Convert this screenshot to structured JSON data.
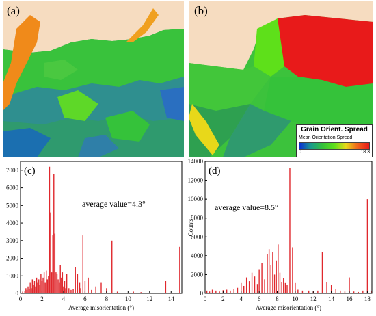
{
  "maps": {
    "a": {
      "letter": "(a)"
    },
    "b": {
      "letter": "(b)",
      "legend": {
        "title": "Grain Orient. Spread",
        "subtitle": "Mean Orientation Spread",
        "min": "0",
        "max": "18.3",
        "colors": [
          "#0a2dd6",
          "#1a9c8c",
          "#35c23a",
          "#5ee01a",
          "#e8d81a",
          "#f0641a",
          "#e81a1a"
        ]
      }
    }
  },
  "chart_data": [
    {
      "id": "c",
      "type": "bar",
      "panel_label": "(c)",
      "annotation": "average value=4.3°",
      "xlabel": "Average misorientation (°)",
      "ylabel": "",
      "xlim": [
        0,
        15
      ],
      "ylim": [
        0,
        7500
      ],
      "xticks": [
        0,
        2,
        4,
        6,
        8,
        10,
        12,
        14
      ],
      "yticks": [
        0,
        1000,
        2000,
        3000,
        4000,
        5000,
        6000,
        7000
      ],
      "color": "#e0282d",
      "x": [
        0.2,
        0.4,
        0.5,
        0.6,
        0.7,
        0.8,
        0.9,
        1.0,
        1.1,
        1.2,
        1.3,
        1.4,
        1.5,
        1.6,
        1.7,
        1.8,
        1.9,
        2.0,
        2.1,
        2.2,
        2.3,
        2.4,
        2.5,
        2.6,
        2.7,
        2.8,
        2.9,
        3.0,
        3.1,
        3.2,
        3.3,
        3.4,
        3.5,
        3.6,
        3.7,
        3.8,
        3.9,
        4.0,
        4.1,
        4.2,
        4.3,
        4.5,
        4.7,
        4.9,
        5.1,
        5.3,
        5.5,
        5.6,
        5.8,
        6.0,
        6.3,
        6.6,
        7.0,
        7.5,
        8.0,
        8.5,
        9.0,
        10.5,
        11.2,
        13.5,
        14.8
      ],
      "y": [
        100,
        150,
        300,
        200,
        400,
        250,
        600,
        300,
        800,
        500,
        700,
        400,
        900,
        600,
        800,
        500,
        1100,
        700,
        900,
        1200,
        600,
        1300,
        800,
        1000,
        7200,
        4600,
        1200,
        3300,
        6800,
        3400,
        1200,
        1100,
        800,
        600,
        1600,
        900,
        1200,
        400,
        700,
        300,
        1100,
        300,
        200,
        250,
        1500,
        1100,
        600,
        300,
        3300,
        700,
        900,
        200,
        400,
        600,
        300,
        3000,
        100,
        100,
        70,
        700,
        2650
      ]
    },
    {
      "id": "d",
      "type": "bar",
      "panel_label": "(d)",
      "annotation": "average value=8.5°",
      "xlabel": "Average misorientation (°)",
      "ylabel": "Counts",
      "xlim": [
        0,
        18.5
      ],
      "ylim": [
        0,
        14000
      ],
      "xticks": [
        0,
        2,
        4,
        6,
        8,
        10,
        12,
        14,
        16,
        18
      ],
      "yticks": [
        0,
        2000,
        4000,
        6000,
        8000,
        10000,
        12000,
        14000
      ],
      "color": "#e0282d",
      "x": [
        0.2,
        0.5,
        0.8,
        1.2,
        1.6,
        2.0,
        2.4,
        2.8,
        3.2,
        3.6,
        4.0,
        4.3,
        4.6,
        4.9,
        5.2,
        5.5,
        5.8,
        6.0,
        6.3,
        6.6,
        6.9,
        7.1,
        7.3,
        7.5,
        7.7,
        7.9,
        8.1,
        8.3,
        8.5,
        8.7,
        8.9,
        9.1,
        9.4,
        9.7,
        10.0,
        10.3,
        10.8,
        11.5,
        12.0,
        12.5,
        13.0,
        13.5,
        14.0,
        14.5,
        15.0,
        15.5,
        16.0,
        16.5,
        17.0,
        17.5,
        18.0,
        18.4
      ],
      "y": [
        300,
        200,
        400,
        300,
        200,
        350,
        400,
        300,
        500,
        600,
        1100,
        800,
        1700,
        1300,
        2200,
        1800,
        1000,
        2500,
        3200,
        1500,
        4200,
        4700,
        3000,
        4400,
        2000,
        3500,
        5200,
        2200,
        1200,
        1600,
        1100,
        900,
        13300,
        4900,
        1100,
        400,
        300,
        300,
        200,
        300,
        4400,
        1200,
        900,
        500,
        300,
        200,
        1700,
        200,
        150,
        300,
        10000,
        300
      ]
    }
  ]
}
